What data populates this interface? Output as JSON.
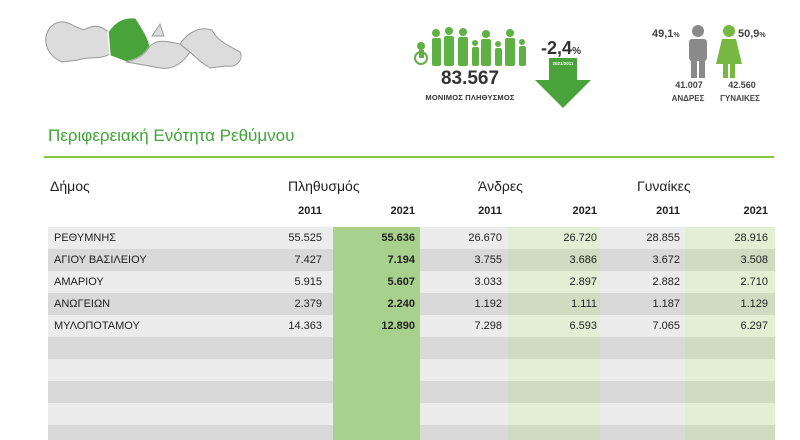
{
  "infographic": {
    "total_population": "83.567",
    "total_label": "ΜΟΝΙΜΟΣ ΠΛΗΘΥΣΜΟΣ",
    "change_number": "-2,4",
    "change_unit": "%",
    "change_period": "2021/2011",
    "male_percent": "49,1",
    "male_percent_unit": "%",
    "female_percent": "50,9",
    "female_percent_unit": "%",
    "male_count": "41.007",
    "female_count": "42.560",
    "male_label": "ΑΝΔΡΕΣ",
    "female_label": "ΓΥΝΑΙΚΕΣ"
  },
  "section_title": "Περιφερειακή Ενότητα Ρεθύμνου",
  "table": {
    "municipality_header": "Δήμος",
    "groups": [
      "Πληθυσμός",
      "Άνδρες",
      "Γυναίκες"
    ],
    "years": [
      "2011",
      "2021",
      "2011",
      "2021",
      "2011",
      "2021"
    ],
    "rows": [
      {
        "name": "ΡΕΘΥΜΝΗΣ",
        "values": [
          "55.525",
          "55.636",
          "26.670",
          "26.720",
          "28.855",
          "28.916"
        ]
      },
      {
        "name": "ΑΓΙΟΥ ΒΑΣΙΛΕΙΟΥ",
        "values": [
          "7.427",
          "7.194",
          "3.755",
          "3.686",
          "3.672",
          "3.508"
        ]
      },
      {
        "name": "ΑΜΑΡΙΟΥ",
        "values": [
          "5.915",
          "5.607",
          "3.033",
          "2.897",
          "2.882",
          "2.710"
        ]
      },
      {
        "name": "ΑΝΩΓΕΙΩΝ",
        "values": [
          "2.379",
          "2.240",
          "1.192",
          "1.111",
          "1.187",
          "1.129"
        ]
      },
      {
        "name": "ΜΥΛΟΠΟΤΑΜΟΥ",
        "values": [
          "14.363",
          "12.890",
          "7.298",
          "6.593",
          "7.065",
          "6.297"
        ]
      }
    ]
  },
  "colors": {
    "accent": "#3fa535",
    "population_2021": "#a8d18d",
    "gender_2021_light": "#e2efd5",
    "gender_2021_dark": "#cfdcc2",
    "row_light": "#ececec",
    "row_dark": "#d9d9d9",
    "female_icon": "#77b843",
    "male_icon": "#8a8a8a"
  }
}
